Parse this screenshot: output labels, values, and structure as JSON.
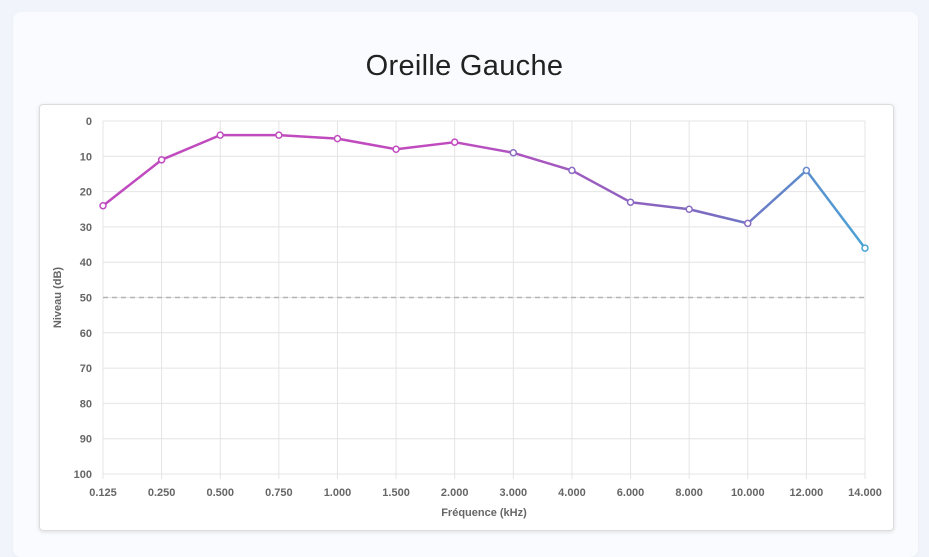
{
  "title": "Oreille Gauche",
  "chart_data": {
    "type": "line",
    "xlabel": "Fréquence (kHz)",
    "ylabel": "Niveau (dB)",
    "categories": [
      "0.125",
      "0.250",
      "0.500",
      "0.750",
      "1.000",
      "1.500",
      "2.000",
      "3.000",
      "4.000",
      "6.000",
      "8.000",
      "10.000",
      "12.000",
      "14.000"
    ],
    "series": [
      {
        "values": [
          24,
          11,
          4,
          4,
          5,
          8,
          6,
          9,
          14,
          23,
          25,
          29,
          14,
          36
        ]
      }
    ],
    "ylim": [
      0,
      100
    ],
    "y_reversed": true,
    "yticks": [
      0,
      10,
      20,
      30,
      40,
      50,
      60,
      70,
      80,
      90,
      100
    ],
    "reference_line": 50,
    "grid": true,
    "colors": {
      "line_start": "#c04bbf",
      "line_end": "#4aa3d6",
      "reference": "#b5b5b5",
      "grid": "#e4e4e4"
    }
  }
}
